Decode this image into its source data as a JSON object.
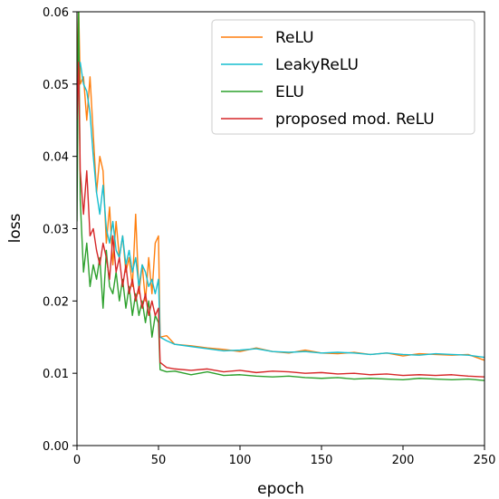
{
  "chart_data": {
    "type": "line",
    "title": "",
    "xlabel": "epoch",
    "ylabel": "loss",
    "xlim": [
      0,
      250
    ],
    "ylim": [
      0.0,
      0.06
    ],
    "xticks": [
      0,
      50,
      100,
      150,
      200,
      250
    ],
    "xtick_labels": [
      "0",
      "50",
      "100",
      "150",
      "200",
      "250"
    ],
    "yticks": [
      0.0,
      0.01,
      0.02,
      0.03,
      0.04,
      0.05,
      0.06
    ],
    "ytick_labels": [
      "0.00",
      "0.01",
      "0.02",
      "0.03",
      "0.04",
      "0.05",
      "0.06"
    ],
    "grid": false,
    "legend_position": "top-right",
    "series": [
      {
        "name": "ReLU",
        "color": "#ff7f0e",
        "x": [
          0,
          1,
          2,
          4,
          6,
          8,
          10,
          12,
          14,
          16,
          18,
          20,
          22,
          24,
          26,
          28,
          30,
          32,
          34,
          36,
          38,
          40,
          42,
          44,
          46,
          48,
          50,
          51,
          55,
          60,
          70,
          80,
          90,
          100,
          110,
          120,
          130,
          140,
          150,
          160,
          170,
          180,
          190,
          200,
          210,
          220,
          230,
          240,
          250
        ],
        "y": [
          0.047,
          0.061,
          0.05,
          0.051,
          0.045,
          0.051,
          0.043,
          0.035,
          0.04,
          0.038,
          0.028,
          0.033,
          0.025,
          0.031,
          0.026,
          0.029,
          0.024,
          0.026,
          0.022,
          0.032,
          0.021,
          0.025,
          0.02,
          0.026,
          0.021,
          0.028,
          0.029,
          0.015,
          0.0152,
          0.014,
          0.0138,
          0.0135,
          0.0133,
          0.013,
          0.0135,
          0.013,
          0.0128,
          0.0132,
          0.0128,
          0.0127,
          0.0129,
          0.0126,
          0.0128,
          0.0124,
          0.0127,
          0.0126,
          0.0125,
          0.0126,
          0.0118
        ]
      },
      {
        "name": "LeakyReLU",
        "color": "#17becf",
        "x": [
          0,
          1,
          2,
          4,
          6,
          8,
          10,
          12,
          14,
          16,
          18,
          20,
          22,
          24,
          26,
          28,
          30,
          32,
          34,
          36,
          38,
          40,
          42,
          44,
          46,
          48,
          50,
          51,
          55,
          60,
          70,
          80,
          90,
          100,
          110,
          120,
          130,
          140,
          150,
          160,
          170,
          180,
          190,
          200,
          210,
          220,
          230,
          240,
          250
        ],
        "y": [
          0.044,
          0.052,
          0.053,
          0.05,
          0.049,
          0.046,
          0.04,
          0.035,
          0.032,
          0.036,
          0.03,
          0.028,
          0.031,
          0.027,
          0.026,
          0.029,
          0.025,
          0.027,
          0.024,
          0.026,
          0.022,
          0.025,
          0.024,
          0.022,
          0.023,
          0.021,
          0.023,
          0.015,
          0.0145,
          0.014,
          0.0137,
          0.0134,
          0.0131,
          0.0132,
          0.0134,
          0.013,
          0.0129,
          0.013,
          0.0128,
          0.0129,
          0.0128,
          0.0126,
          0.0128,
          0.0126,
          0.0125,
          0.0127,
          0.0126,
          0.0125,
          0.0122
        ]
      },
      {
        "name": "ELU",
        "color": "#2ca02c",
        "x": [
          0,
          1,
          2,
          4,
          6,
          8,
          10,
          12,
          14,
          16,
          18,
          20,
          22,
          24,
          26,
          28,
          30,
          32,
          34,
          36,
          38,
          40,
          42,
          44,
          46,
          48,
          50,
          51,
          55,
          60,
          70,
          80,
          90,
          100,
          110,
          120,
          130,
          140,
          150,
          160,
          170,
          180,
          190,
          200,
          210,
          220,
          230,
          240,
          250
        ],
        "y": [
          0.031,
          0.061,
          0.034,
          0.024,
          0.028,
          0.022,
          0.025,
          0.023,
          0.026,
          0.019,
          0.027,
          0.022,
          0.021,
          0.024,
          0.02,
          0.023,
          0.019,
          0.022,
          0.018,
          0.021,
          0.018,
          0.02,
          0.017,
          0.02,
          0.015,
          0.018,
          0.017,
          0.0105,
          0.0102,
          0.0103,
          0.0098,
          0.0102,
          0.0097,
          0.0098,
          0.0096,
          0.0095,
          0.0096,
          0.0094,
          0.0093,
          0.0094,
          0.0092,
          0.0093,
          0.0092,
          0.0091,
          0.0093,
          0.0092,
          0.0091,
          0.0092,
          0.009
        ]
      },
      {
        "name": "proposed mod. ReLU",
        "color": "#d62728",
        "x": [
          0,
          1,
          2,
          4,
          6,
          8,
          10,
          12,
          14,
          16,
          18,
          20,
          22,
          24,
          26,
          28,
          30,
          32,
          34,
          36,
          38,
          40,
          42,
          44,
          46,
          48,
          50,
          51,
          55,
          60,
          70,
          80,
          90,
          100,
          110,
          120,
          130,
          140,
          150,
          160,
          170,
          180,
          190,
          200,
          210,
          220,
          230,
          240,
          250
        ],
        "y": [
          0.045,
          0.053,
          0.038,
          0.032,
          0.038,
          0.029,
          0.03,
          0.027,
          0.025,
          0.028,
          0.026,
          0.023,
          0.029,
          0.024,
          0.026,
          0.022,
          0.025,
          0.021,
          0.023,
          0.02,
          0.022,
          0.019,
          0.021,
          0.018,
          0.02,
          0.018,
          0.019,
          0.0115,
          0.0108,
          0.0106,
          0.0104,
          0.0106,
          0.0102,
          0.0104,
          0.0101,
          0.0103,
          0.0102,
          0.01,
          0.0101,
          0.0099,
          0.01,
          0.0098,
          0.0099,
          0.0097,
          0.0098,
          0.0097,
          0.0098,
          0.0096,
          0.0095
        ]
      }
    ]
  }
}
